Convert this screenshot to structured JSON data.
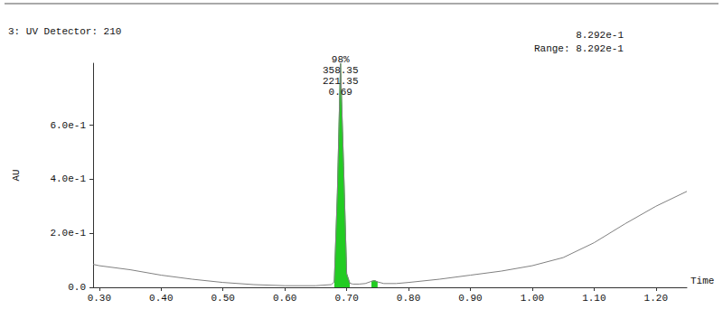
{
  "chart_data": {
    "type": "line",
    "title": "3: UV Detector: 210",
    "corner_text": [
      "8.292e-1",
      "Range: 8.292e-1"
    ],
    "xlabel": "Time",
    "ylabel": "AU",
    "x": [
      0.29,
      0.3,
      0.35,
      0.4,
      0.45,
      0.5,
      0.55,
      0.6,
      0.65,
      0.675,
      0.68,
      0.685,
      0.69,
      0.695,
      0.7,
      0.705,
      0.71,
      0.72,
      0.73,
      0.74,
      0.745,
      0.75,
      0.76,
      0.78,
      0.8,
      0.85,
      0.9,
      0.95,
      1.0,
      1.05,
      1.1,
      1.15,
      1.2,
      1.25
    ],
    "series": [
      {
        "color": "#808080",
        "values": [
          0.085,
          0.08,
          0.065,
          0.045,
          0.03,
          0.018,
          0.01,
          0.006,
          0.006,
          0.01,
          0.02,
          0.35,
          0.8292,
          0.45,
          0.05,
          0.015,
          0.012,
          0.012,
          0.014,
          0.022,
          0.025,
          0.02,
          0.014,
          0.014,
          0.018,
          0.03,
          0.045,
          0.06,
          0.08,
          0.11,
          0.165,
          0.235,
          0.3,
          0.355
        ]
      },
      {
        "type": "area",
        "color": "#22cc22",
        "values": [
          null,
          null,
          null,
          null,
          null,
          null,
          null,
          null,
          null,
          null,
          0.02,
          0.35,
          0.8292,
          0.45,
          0.05,
          0.015,
          null,
          null,
          null,
          0.022,
          0.025,
          0.02,
          null,
          null,
          null,
          null,
          null,
          null,
          null,
          null,
          null,
          null,
          null,
          null
        ]
      }
    ],
    "annotations": [
      {
        "x": 0.69,
        "y": 0.8292,
        "text": [
          "98%",
          "358.35",
          "221.35",
          "0.69"
        ]
      }
    ],
    "xlim": [
      0.29,
      1.25
    ],
    "xticks": [
      {
        "value": 0.3,
        "label": "0.30"
      },
      {
        "value": 0.4,
        "label": "0.40"
      },
      {
        "value": 0.5,
        "label": "0.50"
      },
      {
        "value": 0.6,
        "label": "0.60"
      },
      {
        "value": 0.7,
        "label": "0.70"
      },
      {
        "value": 0.8,
        "label": "0.80"
      },
      {
        "value": 0.9,
        "label": "0.90"
      },
      {
        "value": 1.0,
        "label": "1.00"
      },
      {
        "value": 1.1,
        "label": "1.10"
      },
      {
        "value": 1.2,
        "label": "1.20"
      }
    ],
    "ylim": [
      0,
      0.8292
    ],
    "yticks": [
      {
        "value": 0,
        "label": "0.0"
      },
      {
        "value": 0.2,
        "label": "2.0e-1"
      },
      {
        "value": 0.4,
        "label": "4.0e-1"
      },
      {
        "value": 0.6,
        "label": "6.0e-1"
      }
    ],
    "grid": false
  }
}
